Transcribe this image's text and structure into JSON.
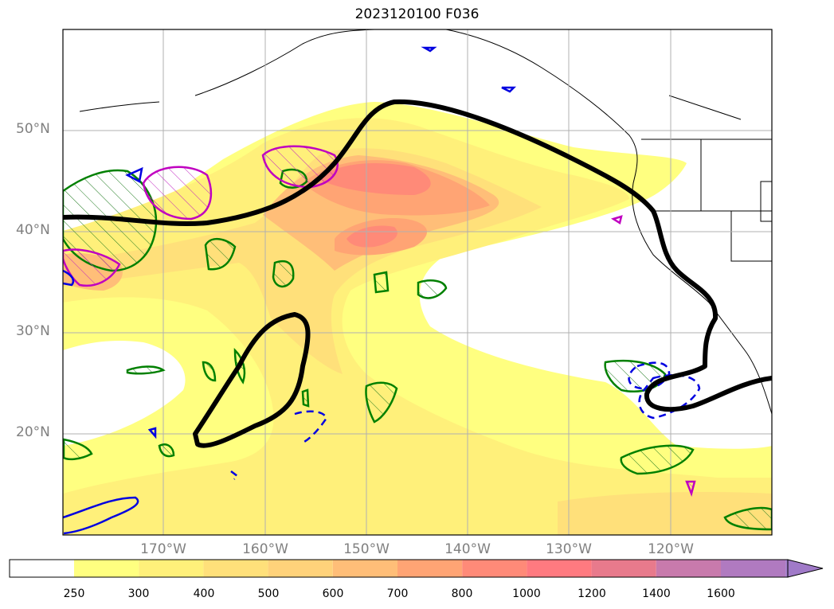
{
  "title": "2023120100 F036",
  "map": {
    "lat_labels": [
      "50°N",
      "40°N",
      "30°N",
      "20°N"
    ],
    "lon_labels": [
      "170°W",
      "160°W",
      "150°W",
      "140°W",
      "130°W",
      "120°W"
    ]
  },
  "colorbar": {
    "labels": [
      "250",
      "300",
      "400",
      "500",
      "600",
      "700",
      "800",
      "1000",
      "1200",
      "1400",
      "1600"
    ],
    "colors": [
      "#ffffff",
      "#ffff80",
      "#fff07a",
      "#ffe07a",
      "#ffd27a",
      "#ffbe78",
      "#ffa474",
      "#ff8a78",
      "#ff7a80",
      "#e87a8c",
      "#c87aac",
      "#b07ac0",
      "#a07ac8"
    ],
    "extend": "max"
  },
  "icons": [
    "hatched-contour",
    "dashed-contour",
    "bold-contour"
  ]
}
